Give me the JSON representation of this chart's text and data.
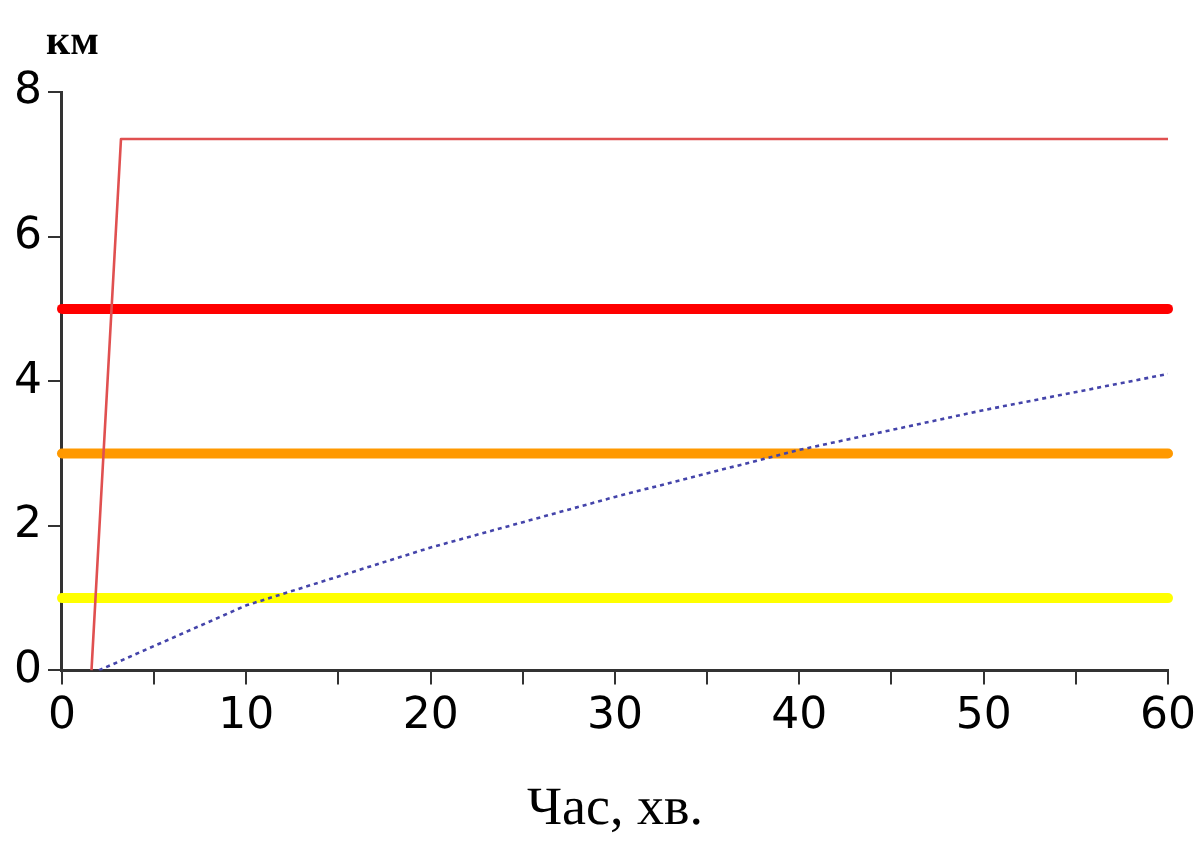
{
  "chart_data": {
    "type": "line",
    "xlabel": "Час, хв.",
    "ylabel": "км",
    "xlim": [
      0,
      60
    ],
    "xticks": [
      0,
      {
        "value": 5,
        "label": null
      },
      10,
      {
        "value": 15,
        "label": null
      },
      20,
      {
        "value": 25,
        "label": null
      },
      30,
      {
        "value": 35,
        "label": null
      },
      40,
      {
        "value": 45,
        "label": null
      },
      50,
      {
        "value": 55,
        "label": null
      },
      60
    ],
    "ylim": [
      0,
      8
    ],
    "yticks": [
      0,
      2,
      4,
      6,
      8
    ],
    "grid": false,
    "legend": false,
    "marker": "none",
    "series": [
      {
        "color": "#e05050",
        "x": [
          1.6,
          3.2,
          60
        ],
        "values": [
          0,
          7.35,
          7.35
        ],
        "line_style": "solid"
      },
      {
        "color": "#4444aa",
        "x": [
          2,
          10,
          20,
          30,
          40,
          50,
          60
        ],
        "values": [
          0,
          0.9,
          1.7,
          2.4,
          3.05,
          3.6,
          4.1
        ],
        "line_style": "dotted"
      }
    ],
    "ref_lines": [
      {
        "axis": "y",
        "value": 5,
        "color": "#ff0000"
      },
      {
        "axis": "y",
        "value": 3,
        "color": "#ff9900"
      },
      {
        "axis": "y",
        "value": 1,
        "color": "#ffff00"
      }
    ]
  }
}
